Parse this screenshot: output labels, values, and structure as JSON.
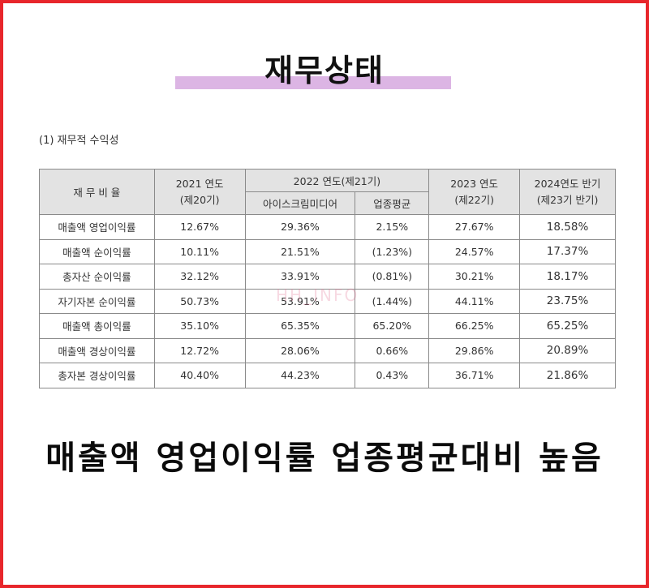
{
  "title": "재무상태",
  "section_label": "(1) 재무적 수익성",
  "table": {
    "header": {
      "ratio_col": "재 무 비 율",
      "y2021_line1": "2021 연도",
      "y2021_line2": "(제20기)",
      "y2022": "2022 연도(제21기)",
      "y2022_company": "아이스크림미디어",
      "y2022_industry": "업종평균",
      "y2023_line1": "2023 연도",
      "y2023_line2": "(제22기)",
      "y2024_line1": "2024연도 반기",
      "y2024_line2": "(제23기 반기)"
    },
    "rows": [
      {
        "name": "매출액 영업이익률",
        "y2021": "12.67%",
        "y2022": "29.36%",
        "industry": "2.15%",
        "y2023": "27.67%",
        "y2024": "18.58%"
      },
      {
        "name": "매출액 순이익률",
        "y2021": "10.11%",
        "y2022": "21.51%",
        "industry": "(1.23%)",
        "y2023": "24.57%",
        "y2024": "17.37%"
      },
      {
        "name": "총자산 순이익률",
        "y2021": "32.12%",
        "y2022": "33.91%",
        "industry": "(0.81%)",
        "y2023": "30.21%",
        "y2024": "18.17%"
      },
      {
        "name": "자기자본 순이익률",
        "y2021": "50.73%",
        "y2022": "53.91%",
        "industry": "(1.44%)",
        "y2023": "44.11%",
        "y2024": "23.75%"
      },
      {
        "name": "매출액 총이익률",
        "y2021": "35.10%",
        "y2022": "65.35%",
        "industry": "65.20%",
        "y2023": "66.25%",
        "y2024": "65.25%"
      },
      {
        "name": "매출액 경상이익률",
        "y2021": "12.72%",
        "y2022": "28.06%",
        "industry": "0.66%",
        "y2023": "29.86%",
        "y2024": "20.89%"
      },
      {
        "name": "총자본 경상이익률",
        "y2021": "40.40%",
        "y2022": "44.23%",
        "industry": "0.43%",
        "y2023": "36.71%",
        "y2024": "21.86%"
      }
    ]
  },
  "watermark": "HH_INFO",
  "headline": "매출액 영업이익률 업종평균대비 높음",
  "colors": {
    "border": "#e8262b",
    "title_bar": "#dcb5e4",
    "header_bg": "#e3e3e3"
  }
}
